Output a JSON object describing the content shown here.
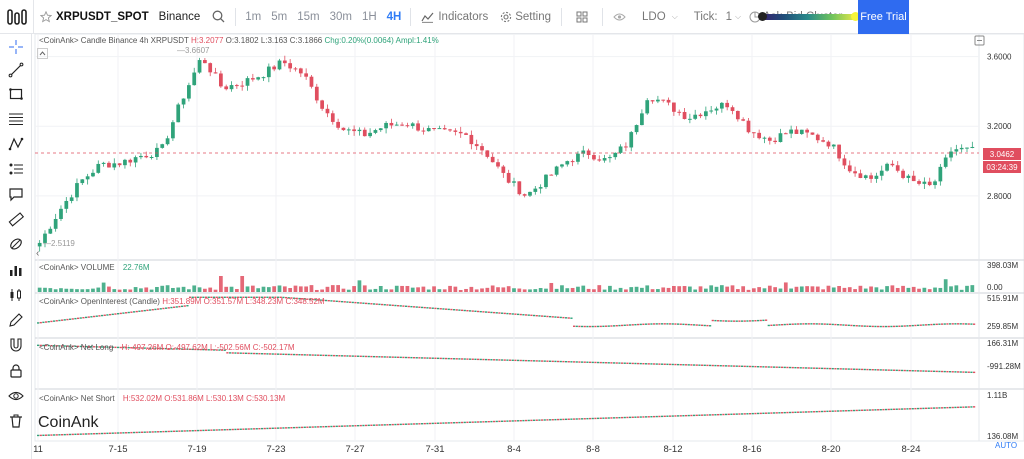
{
  "toolbar": {
    "symbol": "XRPUSDT_SPOT",
    "exchange": "Binance",
    "timeframes": [
      "1m",
      "5m",
      "15m",
      "30m",
      "1H",
      "4H"
    ],
    "active_timeframe": "4H",
    "indicators_label": "Indicators",
    "setting_label": "Setting",
    "coin_select": "LDO",
    "tick_label": "Tick:",
    "tick_value": "1",
    "cluster_label": "Ask-Bid Cluster",
    "free_trial_label": "Free Trial"
  },
  "sidebar": {
    "icons": [
      "crosshair-icon",
      "trend-line-icon",
      "rectangle-icon",
      "fib-lines-icon",
      "pattern-icon",
      "position-icon",
      "comment-icon",
      "ruler-icon",
      "brush-icon",
      "bar-chart-icon",
      "candle-style-icon",
      "pen-icon",
      "magnet-icon",
      "lock-icon",
      "eye-icon",
      "trash-icon"
    ]
  },
  "panes": {
    "candle": {
      "legend_prefix": "<CoinAnk> Candle  Binance 4h XRPUSDT",
      "H": "H:3.2077",
      "O": "O:3.1802",
      "L": "L:3.163",
      "C": "C:3.1866",
      "chg": "Chg:0.20%(0.0064)",
      "ampl": "Ampl:1.41%",
      "high_marker": "3.6607",
      "low_marker": "2.5119",
      "y_ticks": [
        "3.6000",
        "3.2000",
        "2.8000"
      ],
      "last_price": "3.0462",
      "countdown": "03:24:39"
    },
    "volume": {
      "legend_prefix": "<CoinAnk> VOLUME",
      "value": "22.76M",
      "y_ticks": [
        "398.03M",
        "0.00"
      ]
    },
    "open_interest": {
      "legend_prefix": "<CoinAnk> OpenInterest (Candle)",
      "H": "H:351.89M",
      "O": "O:351.57M",
      "L": "L:348.23M",
      "C": "C:348.52M",
      "y_ticks": [
        "515.91M",
        "259.85M"
      ]
    },
    "net_long": {
      "legend_prefix": "<CoinAnk> Net Long",
      "H": "H:-497.26M",
      "O": "O:-497.62M",
      "L": "L:-502.56M",
      "C": "C:-502.17M",
      "y_ticks": [
        "166.31M",
        "-991.28M"
      ]
    },
    "net_short": {
      "legend_prefix": "<CoinAnk> Net Short",
      "H": "H:532.02M",
      "O": "O:531.86M",
      "L": "L:530.13M",
      "C": "C:530.13M",
      "y_ticks": [
        "1.11B",
        "136.08M"
      ]
    }
  },
  "x_axis": [
    "11",
    "7-15",
    "7-19",
    "7-23",
    "7-27",
    "7-31",
    "8-4",
    "8-8",
    "8-12",
    "8-16",
    "8-20",
    "8-24"
  ],
  "watermark": "CoinAnk",
  "auto_label": "AUTO",
  "colors": {
    "up": "#2fa37a",
    "down": "#e04e5f",
    "accent": "#2f6bf0"
  },
  "chart_data": {
    "type": "candlestick",
    "price_path": [
      2.53,
      2.72,
      2.88,
      2.98,
      2.99,
      3.03,
      3.06,
      3.35,
      3.6,
      3.42,
      3.45,
      3.5,
      3.57,
      3.5,
      3.3,
      3.18,
      3.15,
      3.2,
      3.22,
      3.18,
      3.16,
      3.15,
      3.05,
      2.9,
      2.8,
      2.9,
      3.0,
      3.05,
      3.0,
      3.1,
      3.38,
      3.32,
      3.25,
      3.3,
      3.33,
      3.18,
      3.12,
      3.17,
      3.15,
      3.1,
      2.95,
      2.9,
      2.98,
      2.88,
      2.85,
      3.07,
      3.06
    ],
    "price_range": [
      2.5119,
      3.6607
    ]
  }
}
